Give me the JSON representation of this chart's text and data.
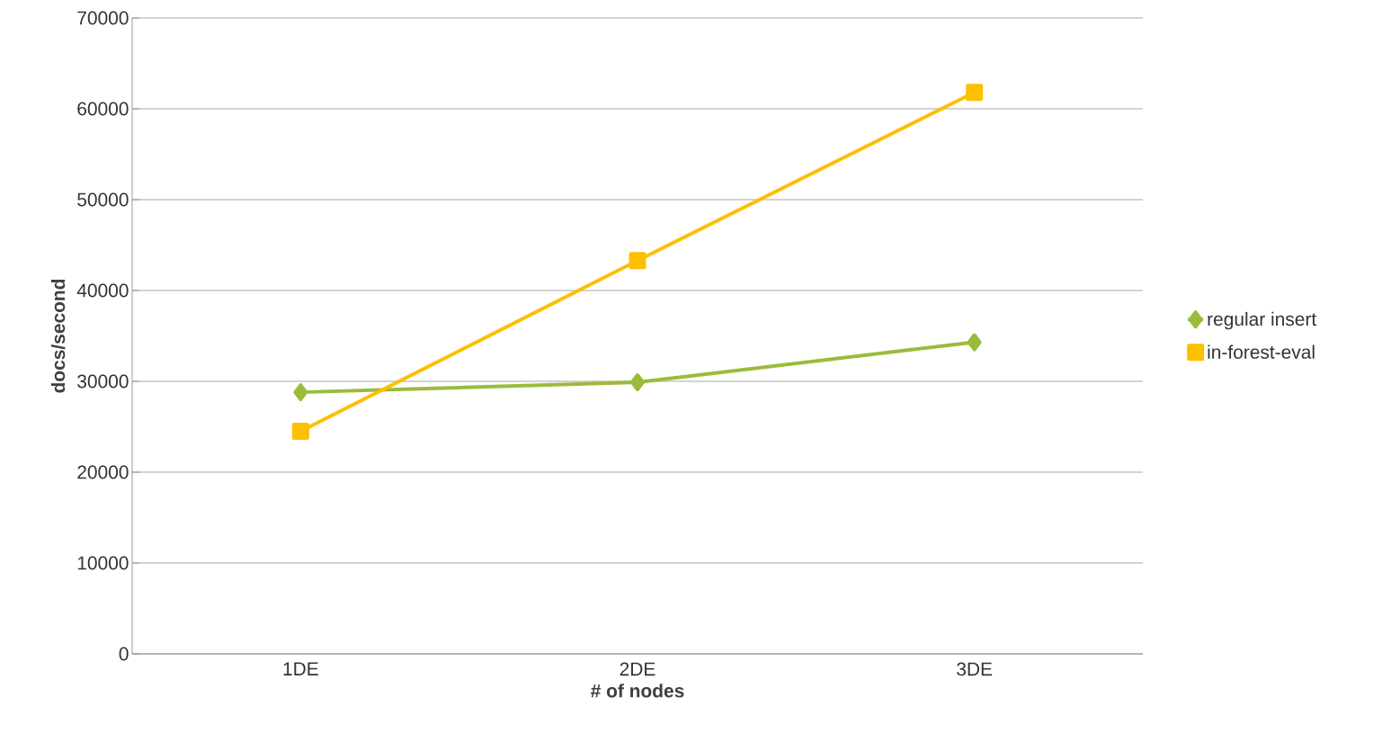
{
  "chart_data": {
    "type": "line",
    "xlabel": "# of nodes",
    "ylabel": "docs/second",
    "categories": [
      "1DE",
      "2DE",
      "3DE"
    ],
    "series": [
      {
        "name": "regular insert",
        "color": "#9bbb3b",
        "marker": "diamond",
        "values": [
          28800,
          29900,
          34300
        ]
      },
      {
        "name": "in-forest-eval",
        "color": "#fcc000",
        "marker": "square",
        "values": [
          24500,
          43300,
          61800
        ]
      }
    ],
    "ylim": [
      0,
      70000
    ],
    "yticks": [
      0,
      10000,
      20000,
      30000,
      40000,
      50000,
      60000,
      70000
    ],
    "grid": "y",
    "legend": "right",
    "line_style": "solid"
  }
}
